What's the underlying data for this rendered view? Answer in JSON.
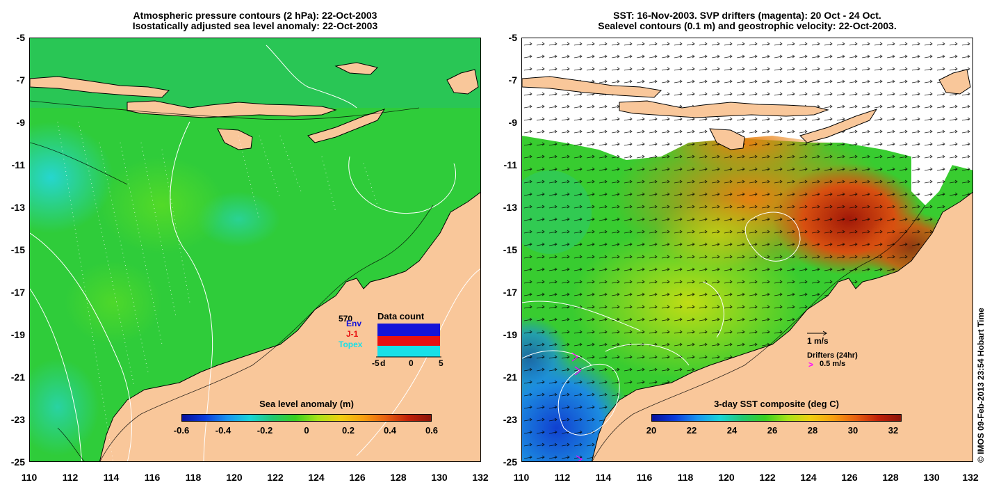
{
  "left_panel": {
    "title_line1": "Atmospheric pressure contours (2 hPa): 22-Oct-2003",
    "title_line2": "Isostatically adjusted sea level anomaly: 22-Oct-2003",
    "colorbar": {
      "title": "Sea level anomaly (m)",
      "ticks": [
        "-0.6",
        "-0.4",
        "-0.2",
        "0",
        "0.2",
        "0.4",
        "0.6"
      ]
    },
    "data_count": {
      "title": "Data count",
      "max_label": "570",
      "series": [
        "Env",
        "J-1",
        "Topex"
      ],
      "series_colors": [
        "#1414d8",
        "#e81010",
        "#18e0e8"
      ],
      "x_ticks": [
        "-5",
        "d",
        "0",
        "5"
      ]
    }
  },
  "right_panel": {
    "title_line1": "SST: 16-Nov-2003. SVP drifters (magenta): 20 Oct - 24 Oct.",
    "title_line2": "Sealevel contours (0.1 m) and geostrophic velocity: 22-Oct-2003.",
    "colorbar": {
      "title": "3-day SST composite (deg C)",
      "ticks": [
        "20",
        "22",
        "24",
        "26",
        "28",
        "30",
        "32"
      ]
    },
    "velocity_legend": "1 m/s",
    "drifter_legend_title": "Drifters (24hr)",
    "drifter_legend_value": "0.5 m/s",
    "drifter_symbol": ">"
  },
  "axes": {
    "y_ticks": [
      "-5",
      "-7",
      "-9",
      "-11",
      "-13",
      "-15",
      "-17",
      "-19",
      "-21",
      "-23",
      "-25"
    ],
    "x_ticks": [
      "110",
      "112",
      "114",
      "116",
      "118",
      "120",
      "122",
      "124",
      "126",
      "128",
      "130",
      "132"
    ]
  },
  "credit": "© IMOS 09-Feb-2013 23:54 Hobart Time",
  "colors": {
    "land": "#f9c79a",
    "ocean_green": "#2fcc3a",
    "magenta": "#ff00ff"
  }
}
